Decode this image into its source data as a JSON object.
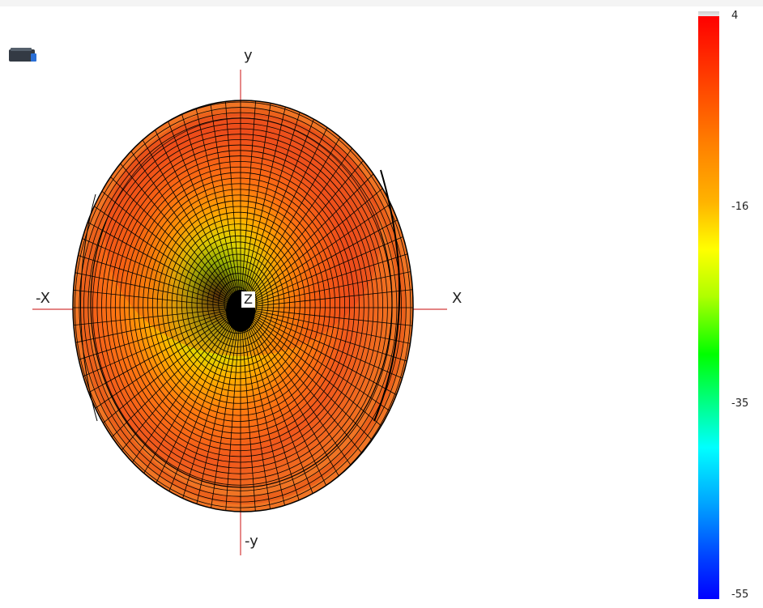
{
  "axes": {
    "y_label": "y",
    "neg_y_label": "-y",
    "x_label": "X",
    "neg_x_label": "-X",
    "z_label": "Z"
  },
  "colorbar": {
    "max_label": "4",
    "tick_labels": [
      "4",
      "-16",
      "-35",
      "-55"
    ],
    "colors": [
      "#ff0000",
      "#ff8000",
      "#ffff00",
      "#00ff00",
      "#00ffff",
      "#0000ff"
    ]
  },
  "icons": {
    "view_cube": "view-cube-icon"
  },
  "colors": {
    "axis_line": "#d43a3a",
    "mesh_line": "#000000",
    "surface_outer": "#f27a1e",
    "surface_inner": "#e8461e"
  }
}
